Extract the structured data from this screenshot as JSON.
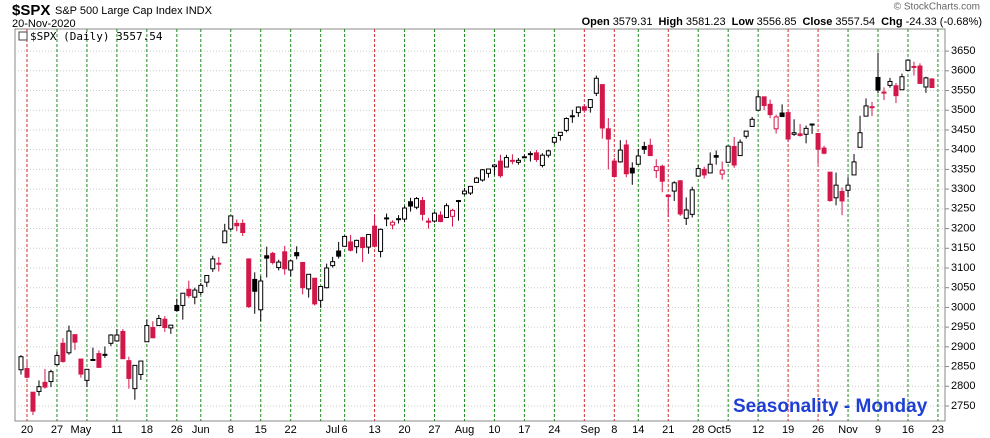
{
  "chart_data": {
    "type": "candlestick",
    "title": "$SPX",
    "subtitle": "S&P 500 Large Cap Index INDX",
    "date": "20-Nov-2020",
    "credit": "© StockCharts.com",
    "legend": "$SPX (Daily) 3557.54",
    "annotation": "Seasonality - Monday",
    "quote": [
      {
        "label": "Open",
        "value": 3579.31
      },
      {
        "label": "High",
        "value": 3581.23
      },
      {
        "label": "Low",
        "value": 3556.85
      },
      {
        "label": "Close",
        "value": 3557.54
      },
      {
        "label": "Chg",
        "value": "-24.33 (-0.68%)"
      }
    ],
    "up_color": "#000000",
    "down_color": "#d2184a",
    "ylim": [
      2712,
      3706
    ],
    "yticks": [
      2750,
      2800,
      2850,
      2900,
      2950,
      3000,
      3050,
      3100,
      3150,
      3200,
      3250,
      3300,
      3350,
      3400,
      3450,
      3500,
      3550,
      3600,
      3650
    ],
    "grid": true,
    "categories": [
      null,
      "20",
      null,
      null,
      null,
      null,
      "27",
      null,
      null,
      null,
      "May",
      null,
      null,
      null,
      null,
      null,
      "11",
      null,
      null,
      null,
      null,
      "18",
      null,
      null,
      null,
      null,
      "26",
      null,
      null,
      null,
      "Jun",
      null,
      null,
      null,
      null,
      "8",
      null,
      null,
      null,
      null,
      "15",
      null,
      null,
      null,
      null,
      "22",
      null,
      null,
      null,
      null,
      null,
      null,
      "Jul",
      null,
      "6",
      null,
      null,
      null,
      null,
      "13",
      null,
      null,
      null,
      null,
      "20",
      null,
      null,
      null,
      null,
      "27",
      null,
      null,
      null,
      null,
      "Aug",
      null,
      null,
      null,
      null,
      "10",
      null,
      null,
      null,
      null,
      "17",
      null,
      null,
      null,
      null,
      "24",
      null,
      null,
      null,
      null,
      null,
      "Sep",
      null,
      null,
      null,
      "8",
      null,
      null,
      null,
      "14",
      null,
      null,
      null,
      null,
      "21",
      null,
      null,
      null,
      null,
      "28",
      null,
      null,
      "Oct",
      null,
      "5",
      null,
      null,
      null,
      null,
      "12",
      null,
      null,
      null,
      null,
      "19",
      null,
      null,
      null,
      null,
      "26",
      null,
      null,
      null,
      null,
      "Nov",
      null,
      null,
      null,
      null,
      "9",
      null,
      null,
      null,
      null,
      "16",
      null,
      null,
      null,
      null,
      "23"
    ],
    "monday_lines": [
      null,
      "#d0302f",
      null,
      null,
      null,
      null,
      "#1f8a1f",
      null,
      null,
      null,
      null,
      "#1f8a1f",
      null,
      null,
      null,
      null,
      "#1f8a1f",
      null,
      null,
      null,
      null,
      "#1f8a1f",
      null,
      null,
      null,
      null,
      "#1f8a1f",
      null,
      null,
      null,
      "#1f8a1f",
      null,
      null,
      null,
      null,
      "#1f8a1f",
      null,
      null,
      null,
      null,
      "#1f8a1f",
      null,
      null,
      null,
      null,
      "#1f8a1f",
      null,
      null,
      null,
      null,
      "#1f8a1f",
      null,
      null,
      null,
      "#1f8a1f",
      null,
      null,
      null,
      null,
      "#d0302f",
      null,
      null,
      null,
      null,
      "#1f8a1f",
      null,
      null,
      null,
      null,
      "#1f8a1f",
      null,
      null,
      null,
      null,
      "#1f8a1f",
      null,
      null,
      null,
      null,
      "#1f8a1f",
      null,
      null,
      null,
      null,
      "#1f8a1f",
      null,
      null,
      null,
      null,
      "#1f8a1f",
      null,
      null,
      null,
      null,
      "#d0302f",
      null,
      null,
      null,
      null,
      "#d0302f",
      null,
      null,
      null,
      "#1f8a1f",
      null,
      null,
      null,
      null,
      "#d0302f",
      null,
      null,
      null,
      null,
      "#1f8a1f",
      null,
      null,
      null,
      null,
      "#1f8a1f",
      null,
      null,
      null,
      null,
      "#1f8a1f",
      null,
      null,
      null,
      null,
      "#d0302f",
      null,
      null,
      null,
      null,
      "#d0302f",
      null,
      null,
      null,
      null,
      "#1f8a1f",
      null,
      null,
      null,
      null,
      "#1f8a1f",
      null,
      null,
      null,
      null,
      "#1f8a1f",
      null,
      null,
      null,
      null,
      "#1f8a1f"
    ],
    "open": [
      2842,
      2845,
      2785,
      2787,
      2810,
      2812,
      2855,
      2909,
      2885,
      2931,
      2869,
      2815,
      2868,
      2883,
      2879,
      2909,
      2915,
      2939,
      2865,
      2794,
      2830,
      2913,
      2949,
      2954,
      2970,
      2948,
      3005,
      3005,
      3046,
      3026,
      3038,
      3064,
      3098,
      3112,
      3164,
      3199,
      3213,
      3213,
      3123,
      3071,
      2994,
      3131,
      3137,
      3101,
      3141,
      3095,
      3139,
      3114,
      3047,
      3074,
      3018,
      3050,
      3106,
      3143,
      3155,
      3166,
      3154,
      3177,
      3153,
      3206,
      3142,
      3225,
      3209,
      3225,
      3224,
      3268,
      3254,
      3271,
      3219,
      3219,
      3234,
      3228,
      3231,
      3270,
      3288,
      3290,
      3317,
      3323,
      3340,
      3357,
      3371,
      3356,
      3372,
      3368,
      3381,
      3388,
      3392,
      3360,
      3386,
      3419,
      3436,
      3449,
      3486,
      3494,
      3509,
      3507,
      3543,
      3565,
      3453,
      3371,
      3369,
      3412,
      3353,
      3363,
      3408,
      3411,
      3347,
      3358,
      3285,
      3295,
      3321,
      3226,
      3236,
      3333,
      3350,
      3341,
      3385,
      3338,
      3368,
      3408,
      3385,
      3434,
      3459,
      3500,
      3534,
      3515,
      3453,
      3493,
      3494,
      3439,
      3440,
      3439,
      3464,
      3441,
      3404,
      3343,
      3278,
      3294,
      3297,
      3336,
      3406,
      3485,
      3509,
      3583,
      3544,
      3563,
      3562,
      3552,
      3601,
      3611,
      3612,
      3559,
      3579.31,
      null
    ],
    "high": [
      2879,
      2868,
      2785,
      2815,
      2844,
      2842,
      2888,
      2922,
      2954,
      2931,
      2869,
      2844,
      2898,
      2891,
      2901,
      2932,
      2945,
      2945,
      2875,
      2853,
      2865,
      2969,
      2965,
      2981,
      2978,
      2956,
      3022,
      3036,
      3068,
      3050,
      3062,
      3081,
      3131,
      3128,
      3212,
      3233,
      3223,
      3223,
      3123,
      3089,
      3079,
      3154,
      3141,
      3121,
      3156,
      3120,
      3155,
      3115,
      3084,
      3074,
      3054,
      3111,
      3128,
      3166,
      3183,
      3184,
      3172,
      3179,
      3186,
      3235,
      3200,
      3238,
      3221,
      3234,
      3258,
      3278,
      3280,
      3280,
      3227,
      3242,
      3244,
      3264,
      3250,
      3272,
      3303,
      3307,
      3331,
      3351,
      3352,
      3364,
      3387,
      3387,
      3388,
      3379,
      3388,
      3396,
      3399,
      3391,
      3400,
      3432,
      3444,
      3482,
      3501,
      3510,
      3515,
      3528,
      3588,
      3565,
      3480,
      3379,
      3424,
      3425,
      3368,
      3402,
      3420,
      3428,
      3376,
      3362,
      3285,
      3320,
      3323,
      3279,
      3306,
      3361,
      3357,
      3393,
      3398,
      3370,
      3409,
      3432,
      3426,
      3447,
      3483,
      3550,
      3535,
      3527,
      3489,
      3515,
      3502,
      3477,
      3465,
      3461,
      3466,
      3441,
      3410,
      3343,
      3342,
      3304,
      3330,
      3389,
      3486,
      3530,
      3521,
      3646,
      3558,
      3582,
      3569,
      3593,
      3629,
      3623,
      3619,
      3585,
      3581.23,
      null
    ],
    "low": [
      2830,
      2820,
      2727,
      2776,
      2794,
      2798,
      2852,
      2860,
      2880,
      2892,
      2822,
      2798,
      2864,
      2847,
      2872,
      2902,
      2915,
      2870,
      2794,
      2766,
      2816,
      2913,
      2922,
      2954,
      2938,
      2933,
      2990,
      2969,
      3024,
      3008,
      3032,
      3052,
      3090,
      3091,
      3164,
      3196,
      3193,
      3181,
      2999,
      2984,
      2965,
      3076,
      3109,
      3094,
      3083,
      3079,
      3122,
      3033,
      3025,
      3005,
      2999,
      3048,
      3101,
      3124,
      3155,
      3142,
      3137,
      3115,
      3136,
      3152,
      3127,
      3206,
      3198,
      3213,
      3216,
      3243,
      3249,
      3220,
      3200,
      3215,
      3216,
      3228,
      3205,
      3220,
      3284,
      3285,
      3317,
      3319,
      3329,
      3335,
      3329,
      3355,
      3363,
      3362,
      3379,
      3370,
      3369,
      3355,
      3380,
      3414,
      3423,
      3444,
      3468,
      3483,
      3494,
      3494,
      3536,
      3428,
      3350,
      3329,
      3367,
      3330,
      3311,
      3363,
      3389,
      3384,
      3328,
      3292,
      3229,
      3270,
      3232,
      3209,
      3228,
      3333,
      3327,
      3340,
      3362,
      3324,
      3368,
      3354,
      3385,
      3428,
      3458,
      3500,
      3500,
      3480,
      3441,
      3483,
      3419,
      3435,
      3433,
      3416,
      3440,
      3364,
      3388,
      3268,
      3259,
      3234,
      3279,
      3336,
      3406,
      3485,
      3485,
      3543,
      3526,
      3557,
      3518,
      3552,
      3601,
      3588,
      3567,
      3544,
      3556.85,
      null
    ],
    "close": [
      2875,
      2823,
      2737,
      2799,
      2798,
      2837,
      2878,
      2863,
      2940,
      2912,
      2831,
      2843,
      2868,
      2848,
      2881,
      2930,
      2930,
      2870,
      2820,
      2853,
      2864,
      2954,
      2923,
      2972,
      2949,
      2955,
      2992,
      3036,
      3030,
      3044,
      3056,
      3081,
      3123,
      3112,
      3194,
      3232,
      3207,
      3190,
      3002,
      3041,
      3067,
      3125,
      3114,
      3115,
      3098,
      3118,
      3131,
      3050,
      3084,
      3009,
      3053,
      3100,
      3116,
      3130,
      3180,
      3145,
      3170,
      3152,
      3185,
      3155,
      3198,
      3227,
      3216,
      3225,
      3252,
      3257,
      3276,
      3236,
      3216,
      3239,
      3218,
      3258,
      3246,
      3271,
      3295,
      3307,
      3328,
      3349,
      3351,
      3361,
      3334,
      3380,
      3373,
      3373,
      3382,
      3390,
      3375,
      3386,
      3397,
      3431,
      3444,
      3479,
      3485,
      3508,
      3500,
      3527,
      3581,
      3455,
      3427,
      3332,
      3399,
      3339,
      3341,
      3384,
      3401,
      3385,
      3357,
      3320,
      3281,
      3316,
      3237,
      3247,
      3298,
      3352,
      3336,
      3363,
      3381,
      3348,
      3409,
      3361,
      3419,
      3447,
      3477,
      3534,
      3512,
      3489,
      3483,
      3484,
      3427,
      3443,
      3436,
      3454,
      3465,
      3401,
      3391,
      3271,
      3310,
      3270,
      3310,
      3369,
      3443,
      3511,
      3509,
      3551,
      3546,
      3573,
      3537,
      3585,
      3627,
      3610,
      3568,
      3582,
      3557.54,
      null
    ]
  }
}
